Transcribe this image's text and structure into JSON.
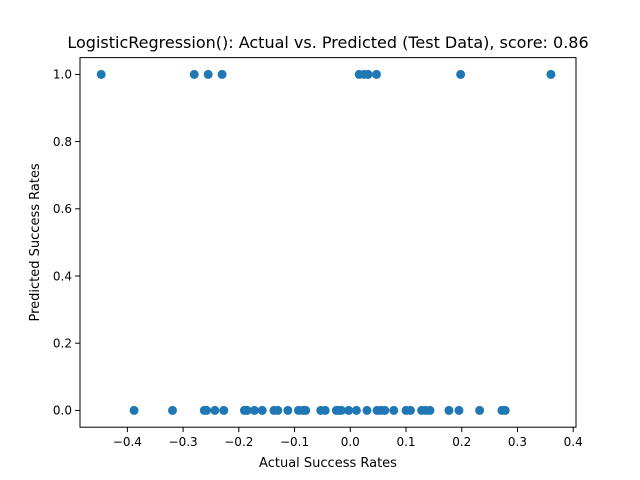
{
  "chart_data": {
    "type": "scatter",
    "title": "LogisticRegression(): Actual vs. Predicted (Test Data), score: 0.86",
    "xlabel": "Actual Success Rates",
    "ylabel": "Predicted Success Rates",
    "xlim": [
      -0.485,
      0.405
    ],
    "ylim": [
      -0.05,
      1.05
    ],
    "xticks": [
      -0.4,
      -0.3,
      -0.2,
      -0.1,
      0.0,
      0.1,
      0.2,
      0.3,
      0.4
    ],
    "xtick_labels": [
      "−0.4",
      "−0.3",
      "−0.2",
      "−0.1",
      "0.0",
      "0.1",
      "0.2",
      "0.3",
      "0.4"
    ],
    "yticks": [
      0.0,
      0.2,
      0.4,
      0.6,
      0.8,
      1.0
    ],
    "ytick_labels": [
      "0.0",
      "0.2",
      "0.4",
      "0.6",
      "0.8",
      "1.0"
    ],
    "grid": false,
    "marker_color": "#1f77b4",
    "points": [
      {
        "x": -0.447,
        "y": 1
      },
      {
        "x": -0.28,
        "y": 1
      },
      {
        "x": -0.255,
        "y": 1
      },
      {
        "x": -0.23,
        "y": 1
      },
      {
        "x": 0.016,
        "y": 1
      },
      {
        "x": 0.025,
        "y": 1
      },
      {
        "x": 0.032,
        "y": 1
      },
      {
        "x": 0.047,
        "y": 1
      },
      {
        "x": 0.198,
        "y": 1
      },
      {
        "x": 0.36,
        "y": 1
      },
      {
        "x": -0.388,
        "y": 0
      },
      {
        "x": -0.319,
        "y": 0
      },
      {
        "x": -0.262,
        "y": 0
      },
      {
        "x": -0.258,
        "y": 0
      },
      {
        "x": -0.243,
        "y": 0
      },
      {
        "x": -0.227,
        "y": 0
      },
      {
        "x": -0.19,
        "y": 0
      },
      {
        "x": -0.185,
        "y": 0
      },
      {
        "x": -0.172,
        "y": 0
      },
      {
        "x": -0.158,
        "y": 0
      },
      {
        "x": -0.137,
        "y": 0
      },
      {
        "x": -0.13,
        "y": 0
      },
      {
        "x": -0.112,
        "y": 0
      },
      {
        "x": -0.093,
        "y": 0
      },
      {
        "x": -0.085,
        "y": 0
      },
      {
        "x": -0.08,
        "y": 0
      },
      {
        "x": -0.053,
        "y": 0
      },
      {
        "x": -0.045,
        "y": 0
      },
      {
        "x": -0.025,
        "y": 0
      },
      {
        "x": -0.02,
        "y": 0
      },
      {
        "x": -0.016,
        "y": 0
      },
      {
        "x": -0.003,
        "y": 0
      },
      {
        "x": 0.011,
        "y": 0
      },
      {
        "x": 0.03,
        "y": 0
      },
      {
        "x": 0.048,
        "y": 0
      },
      {
        "x": 0.055,
        "y": 0
      },
      {
        "x": 0.062,
        "y": 0
      },
      {
        "x": 0.078,
        "y": 0
      },
      {
        "x": 0.1,
        "y": 0
      },
      {
        "x": 0.108,
        "y": 0
      },
      {
        "x": 0.128,
        "y": 0
      },
      {
        "x": 0.135,
        "y": 0
      },
      {
        "x": 0.143,
        "y": 0
      },
      {
        "x": 0.177,
        "y": 0
      },
      {
        "x": 0.195,
        "y": 0
      },
      {
        "x": 0.232,
        "y": 0
      },
      {
        "x": 0.272,
        "y": 0
      },
      {
        "x": 0.278,
        "y": 0
      }
    ]
  }
}
